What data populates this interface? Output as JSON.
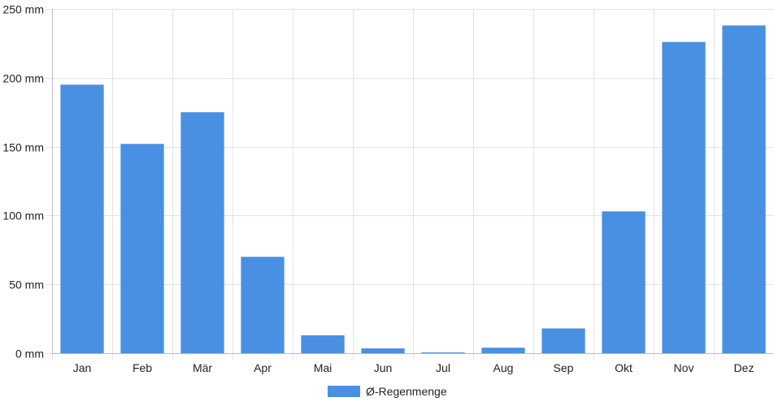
{
  "chart_data": {
    "type": "bar",
    "categories": [
      "Jan",
      "Feb",
      "Mär",
      "Apr",
      "Mai",
      "Jun",
      "Jul",
      "Aug",
      "Sep",
      "Okt",
      "Nov",
      "Dez"
    ],
    "series": [
      {
        "name": "Ø-Regenmenge",
        "values": [
          195,
          152,
          175,
          70,
          13,
          3.5,
          0.5,
          4,
          18,
          103,
          226,
          238
        ],
        "color": "#4a90e2"
      }
    ],
    "unit": "mm",
    "ylim": [
      0,
      250
    ],
    "yticks": [
      0,
      50,
      100,
      150,
      200,
      250
    ],
    "ytick_labels": [
      "0 mm",
      "50 mm",
      "100 mm",
      "150 mm",
      "200 mm",
      "250 mm"
    ],
    "grid": true,
    "legend_position": "bottom-center",
    "colors": {
      "grid": "#e4e4e4",
      "axis": "#bdbdbd",
      "bar_stroke": "#ffffff"
    }
  }
}
